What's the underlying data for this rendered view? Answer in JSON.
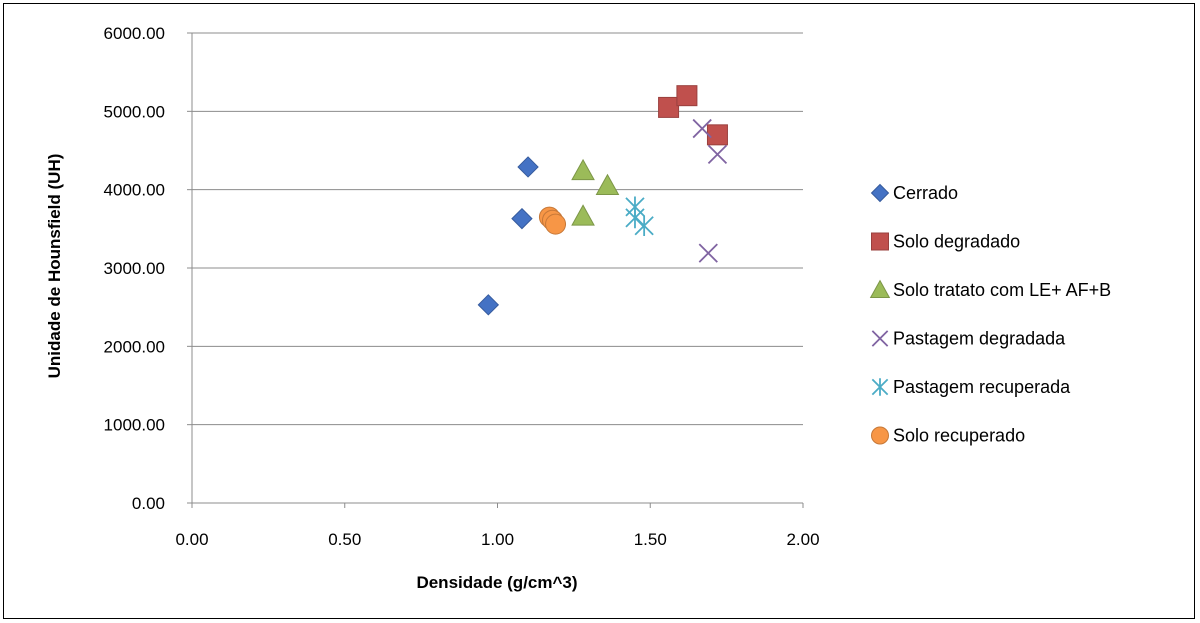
{
  "chart_data": {
    "type": "scatter",
    "title": "",
    "xlabel": "Densidade (g/cm^3)",
    "ylabel": "Unidade de Hounsfield (UH)",
    "xlim": [
      0,
      2
    ],
    "ylim": [
      0,
      6000
    ],
    "x_ticks": [
      "0.00",
      "0.50",
      "1.00",
      "1.50",
      "2.00"
    ],
    "y_ticks": [
      "0.00",
      "1000.00",
      "2000.00",
      "3000.00",
      "4000.00",
      "5000.00",
      "6000.00"
    ],
    "grid": "horizontal",
    "legend_position": "right",
    "series": [
      {
        "name": "Cerrado",
        "marker": "diamond",
        "color": "#4472C4",
        "points": [
          [
            0.97,
            2530
          ],
          [
            1.08,
            3630
          ],
          [
            1.1,
            4290
          ]
        ]
      },
      {
        "name": "Solo degradado",
        "marker": "square",
        "color": "#C0504D",
        "points": [
          [
            1.56,
            5050
          ],
          [
            1.62,
            5200
          ],
          [
            1.72,
            4700
          ]
        ]
      },
      {
        "name": "Solo tratato com LE+ AF+B",
        "marker": "triangle",
        "color": "#9BBB59",
        "points": [
          [
            1.28,
            4240
          ],
          [
            1.36,
            4050
          ],
          [
            1.28,
            3660
          ]
        ]
      },
      {
        "name": "Pastagem degradada",
        "marker": "x",
        "color": "#8064A2",
        "points": [
          [
            1.67,
            4780
          ],
          [
            1.72,
            4450
          ],
          [
            1.69,
            3190
          ]
        ]
      },
      {
        "name": "Pastagem recuperada",
        "marker": "star",
        "color": "#4BACC6",
        "points": [
          [
            1.45,
            3780
          ],
          [
            1.45,
            3640
          ],
          [
            1.48,
            3540
          ]
        ]
      },
      {
        "name": "Solo recuperado",
        "marker": "circle",
        "color": "#F79646",
        "points": [
          [
            1.17,
            3650
          ],
          [
            1.18,
            3610
          ],
          [
            1.19,
            3560
          ]
        ]
      }
    ]
  }
}
